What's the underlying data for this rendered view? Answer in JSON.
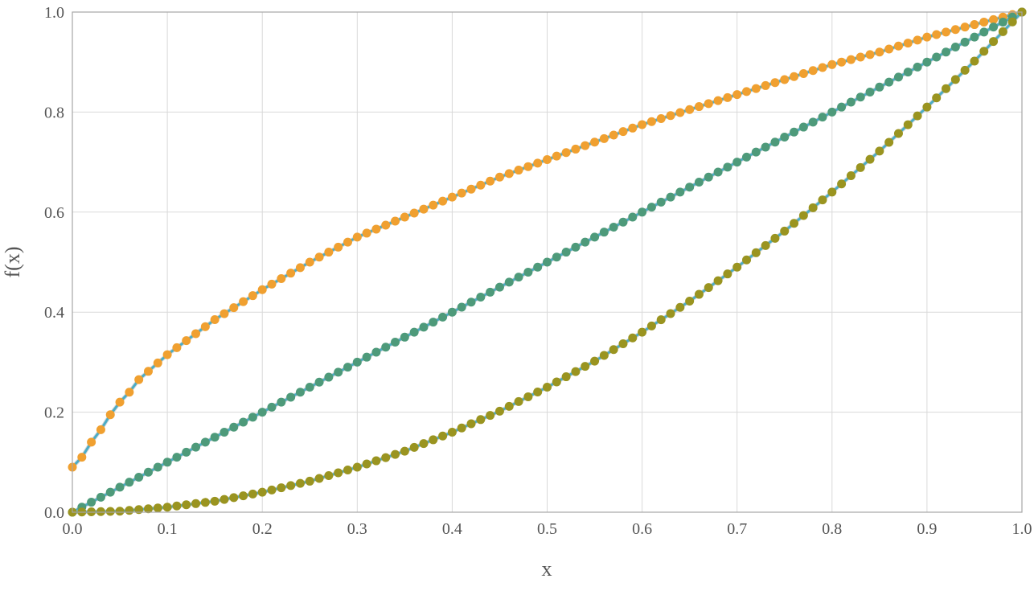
{
  "chart_data": {
    "type": "scatter",
    "title": "",
    "xlabel": "x",
    "ylabel": "f(x)",
    "xlim": [
      0,
      1
    ],
    "ylim": [
      0,
      1
    ],
    "grid": true,
    "legend": "none",
    "x_ticks": [
      "0.0",
      "0.1",
      "0.2",
      "0.3",
      "0.4",
      "0.5",
      "0.6",
      "0.7",
      "0.8",
      "0.9",
      "1.0"
    ],
    "y_ticks": [
      "0.0",
      "0.2",
      "0.4",
      "0.6",
      "0.8",
      "1.0"
    ],
    "line_color": "#4bacc6",
    "series": [
      {
        "color": "#f0a030",
        "x": [
          0,
          0.01,
          0.02,
          0.03,
          0.04,
          0.05,
          0.06,
          0.07,
          0.1,
          0.15,
          0.2,
          0.25,
          0.3,
          0.35,
          0.4,
          0.45,
          0.5,
          0.55,
          0.6,
          0.65,
          0.7,
          0.75,
          0.8,
          0.85,
          0.9,
          0.95,
          0.99,
          1.0
        ],
        "y": [
          0.09,
          0.11,
          0.14,
          0.165,
          0.195,
          0.22,
          0.24,
          0.265,
          0.315,
          0.385,
          0.445,
          0.5,
          0.55,
          0.59,
          0.63,
          0.67,
          0.705,
          0.74,
          0.775,
          0.805,
          0.835,
          0.865,
          0.895,
          0.92,
          0.95,
          0.975,
          0.995,
          1.0
        ]
      },
      {
        "color": "#4e9a7a",
        "x": [
          0,
          0.1,
          0.2,
          0.3,
          0.4,
          0.5,
          0.6,
          0.7,
          0.8,
          0.9,
          1.0
        ],
        "y": [
          0,
          0.1,
          0.2,
          0.3,
          0.4,
          0.5,
          0.6,
          0.7,
          0.8,
          0.9,
          1.0
        ]
      },
      {
        "color": "#9a9420",
        "x": [
          0,
          0.05,
          0.1,
          0.15,
          0.2,
          0.25,
          0.3,
          0.35,
          0.4,
          0.45,
          0.5,
          0.55,
          0.6,
          0.65,
          0.7,
          0.75,
          0.8,
          0.85,
          0.9,
          0.95,
          1.0
        ],
        "y": [
          0,
          0.002,
          0.01,
          0.022,
          0.04,
          0.062,
          0.09,
          0.122,
          0.16,
          0.202,
          0.25,
          0.302,
          0.36,
          0.422,
          0.49,
          0.562,
          0.64,
          0.722,
          0.81,
          0.902,
          1.0
        ]
      }
    ]
  }
}
